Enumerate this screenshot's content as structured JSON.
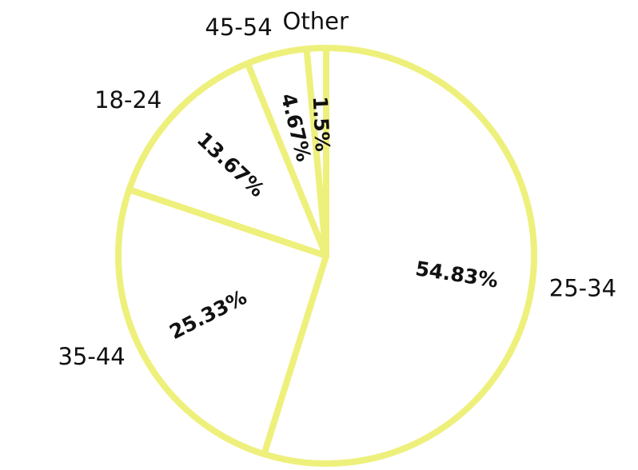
{
  "chart_data": {
    "type": "pie",
    "categories": [
      "25-34",
      "35-44",
      "18-24",
      "45-54",
      "Other"
    ],
    "values": [
      54.83,
      25.33,
      13.67,
      4.67,
      1.5
    ],
    "value_labels": [
      "54.83%",
      "25.33%",
      "13.67%",
      "4.67%",
      "1.5%"
    ],
    "color": "#ffffff",
    "stroke": "#eef07c"
  }
}
